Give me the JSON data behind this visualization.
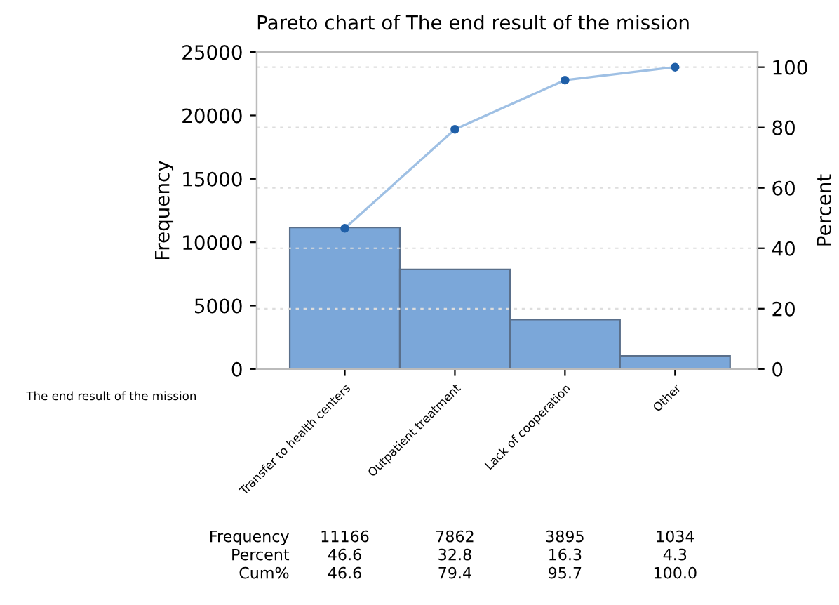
{
  "chart_data": {
    "type": "bar",
    "title": "Pareto chart of The end result of the mission",
    "xlabel": "The end result of the mission",
    "ylabel": "Frequency",
    "y2label": "Percent",
    "categories": [
      "Transfer to health centers",
      "Outpatient treatment",
      "Lack of cooperation",
      "Other"
    ],
    "series": [
      {
        "color": "#7ba7d9",
        "values": [
          11166,
          7862,
          3895,
          1034
        ],
        "value_labels": [
          "11166",
          "7862",
          "3895",
          "1034"
        ]
      },
      {
        "type": "line",
        "axis": "y2",
        "color": "#9fc0e4",
        "marker": "circle",
        "values": [
          46.6,
          79.4,
          95.7,
          100.0
        ],
        "value_labels": [
          "46.6",
          "79.4",
          "95.7",
          "100.0"
        ]
      }
    ],
    "annotations": [
      "Frequency",
      "Percent",
      "46.6",
      "32.8",
      "16.3",
      "4.3",
      "Cum%"
    ],
    "ylim": [
      0,
      25000
    ],
    "yticks": [
      0,
      5000,
      10000,
      15000,
      20000,
      25000
    ],
    "y2lim": [
      0,
      105
    ],
    "y2ticks": [
      0,
      20,
      40,
      60,
      80,
      100
    ],
    "grid": "y2",
    "legend": false
  }
}
